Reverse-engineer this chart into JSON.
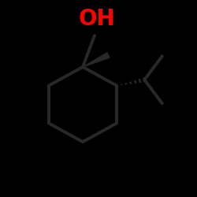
{
  "background_color": "#000000",
  "oh_color": "#ff0000",
  "bond_color": "#1a1a1a",
  "bond_color_light": "#2d2d2d",
  "figsize": [
    2.5,
    2.5
  ],
  "dpi": 100,
  "oh_fontsize": 20,
  "line_width": 2.8,
  "oh_label": "OH"
}
